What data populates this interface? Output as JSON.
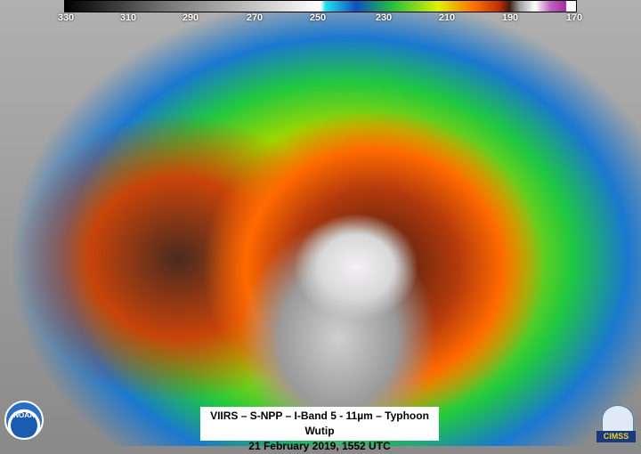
{
  "colorbar": {
    "ticks": [
      "330",
      "310",
      "290",
      "270",
      "250",
      "230",
      "210",
      "190",
      "170"
    ]
  },
  "caption": {
    "line1": "VIIRS – S-NPP – I-Band 5 - 11µm – Typhoon Wutip",
    "line2": "21 February 2019, 1552 UTC"
  },
  "logos": {
    "noaa": "NOAA",
    "cimss": "CIMSS"
  }
}
